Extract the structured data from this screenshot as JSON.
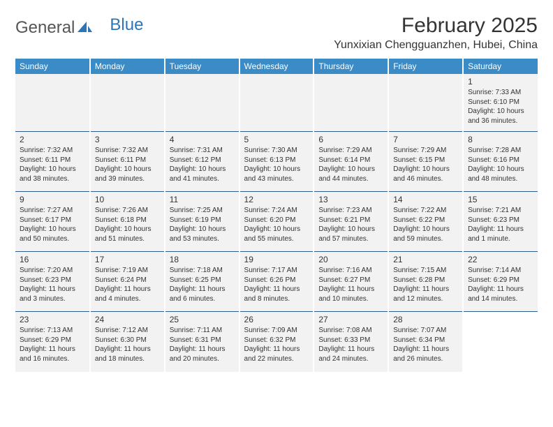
{
  "logo": {
    "text1": "General",
    "text2": "Blue"
  },
  "title": "February 2025",
  "location": "Yunxixian Chengguanzhen, Hubei, China",
  "colors": {
    "header_bg": "#3b8bc6",
    "header_text": "#ffffff",
    "cell_bg": "#f2f2f2",
    "rule": "#2e5d8a",
    "logo_blue": "#2e75b6",
    "body_text": "#333333"
  },
  "day_headers": [
    "Sunday",
    "Monday",
    "Tuesday",
    "Wednesday",
    "Thursday",
    "Friday",
    "Saturday"
  ],
  "weeks": [
    [
      null,
      null,
      null,
      null,
      null,
      null,
      {
        "n": "1",
        "sr": "7:33 AM",
        "ss": "6:10 PM",
        "dl": "10 hours and 36 minutes."
      }
    ],
    [
      {
        "n": "2",
        "sr": "7:32 AM",
        "ss": "6:11 PM",
        "dl": "10 hours and 38 minutes."
      },
      {
        "n": "3",
        "sr": "7:32 AM",
        "ss": "6:11 PM",
        "dl": "10 hours and 39 minutes."
      },
      {
        "n": "4",
        "sr": "7:31 AM",
        "ss": "6:12 PM",
        "dl": "10 hours and 41 minutes."
      },
      {
        "n": "5",
        "sr": "7:30 AM",
        "ss": "6:13 PM",
        "dl": "10 hours and 43 minutes."
      },
      {
        "n": "6",
        "sr": "7:29 AM",
        "ss": "6:14 PM",
        "dl": "10 hours and 44 minutes."
      },
      {
        "n": "7",
        "sr": "7:29 AM",
        "ss": "6:15 PM",
        "dl": "10 hours and 46 minutes."
      },
      {
        "n": "8",
        "sr": "7:28 AM",
        "ss": "6:16 PM",
        "dl": "10 hours and 48 minutes."
      }
    ],
    [
      {
        "n": "9",
        "sr": "7:27 AM",
        "ss": "6:17 PM",
        "dl": "10 hours and 50 minutes."
      },
      {
        "n": "10",
        "sr": "7:26 AM",
        "ss": "6:18 PM",
        "dl": "10 hours and 51 minutes."
      },
      {
        "n": "11",
        "sr": "7:25 AM",
        "ss": "6:19 PM",
        "dl": "10 hours and 53 minutes."
      },
      {
        "n": "12",
        "sr": "7:24 AM",
        "ss": "6:20 PM",
        "dl": "10 hours and 55 minutes."
      },
      {
        "n": "13",
        "sr": "7:23 AM",
        "ss": "6:21 PM",
        "dl": "10 hours and 57 minutes."
      },
      {
        "n": "14",
        "sr": "7:22 AM",
        "ss": "6:22 PM",
        "dl": "10 hours and 59 minutes."
      },
      {
        "n": "15",
        "sr": "7:21 AM",
        "ss": "6:23 PM",
        "dl": "11 hours and 1 minute."
      }
    ],
    [
      {
        "n": "16",
        "sr": "7:20 AM",
        "ss": "6:23 PM",
        "dl": "11 hours and 3 minutes."
      },
      {
        "n": "17",
        "sr": "7:19 AM",
        "ss": "6:24 PM",
        "dl": "11 hours and 4 minutes."
      },
      {
        "n": "18",
        "sr": "7:18 AM",
        "ss": "6:25 PM",
        "dl": "11 hours and 6 minutes."
      },
      {
        "n": "19",
        "sr": "7:17 AM",
        "ss": "6:26 PM",
        "dl": "11 hours and 8 minutes."
      },
      {
        "n": "20",
        "sr": "7:16 AM",
        "ss": "6:27 PM",
        "dl": "11 hours and 10 minutes."
      },
      {
        "n": "21",
        "sr": "7:15 AM",
        "ss": "6:28 PM",
        "dl": "11 hours and 12 minutes."
      },
      {
        "n": "22",
        "sr": "7:14 AM",
        "ss": "6:29 PM",
        "dl": "11 hours and 14 minutes."
      }
    ],
    [
      {
        "n": "23",
        "sr": "7:13 AM",
        "ss": "6:29 PM",
        "dl": "11 hours and 16 minutes."
      },
      {
        "n": "24",
        "sr": "7:12 AM",
        "ss": "6:30 PM",
        "dl": "11 hours and 18 minutes."
      },
      {
        "n": "25",
        "sr": "7:11 AM",
        "ss": "6:31 PM",
        "dl": "11 hours and 20 minutes."
      },
      {
        "n": "26",
        "sr": "7:09 AM",
        "ss": "6:32 PM",
        "dl": "11 hours and 22 minutes."
      },
      {
        "n": "27",
        "sr": "7:08 AM",
        "ss": "6:33 PM",
        "dl": "11 hours and 24 minutes."
      },
      {
        "n": "28",
        "sr": "7:07 AM",
        "ss": "6:34 PM",
        "dl": "11 hours and 26 minutes."
      },
      null
    ]
  ],
  "labels": {
    "sunrise": "Sunrise:",
    "sunset": "Sunset:",
    "daylight": "Daylight:"
  }
}
